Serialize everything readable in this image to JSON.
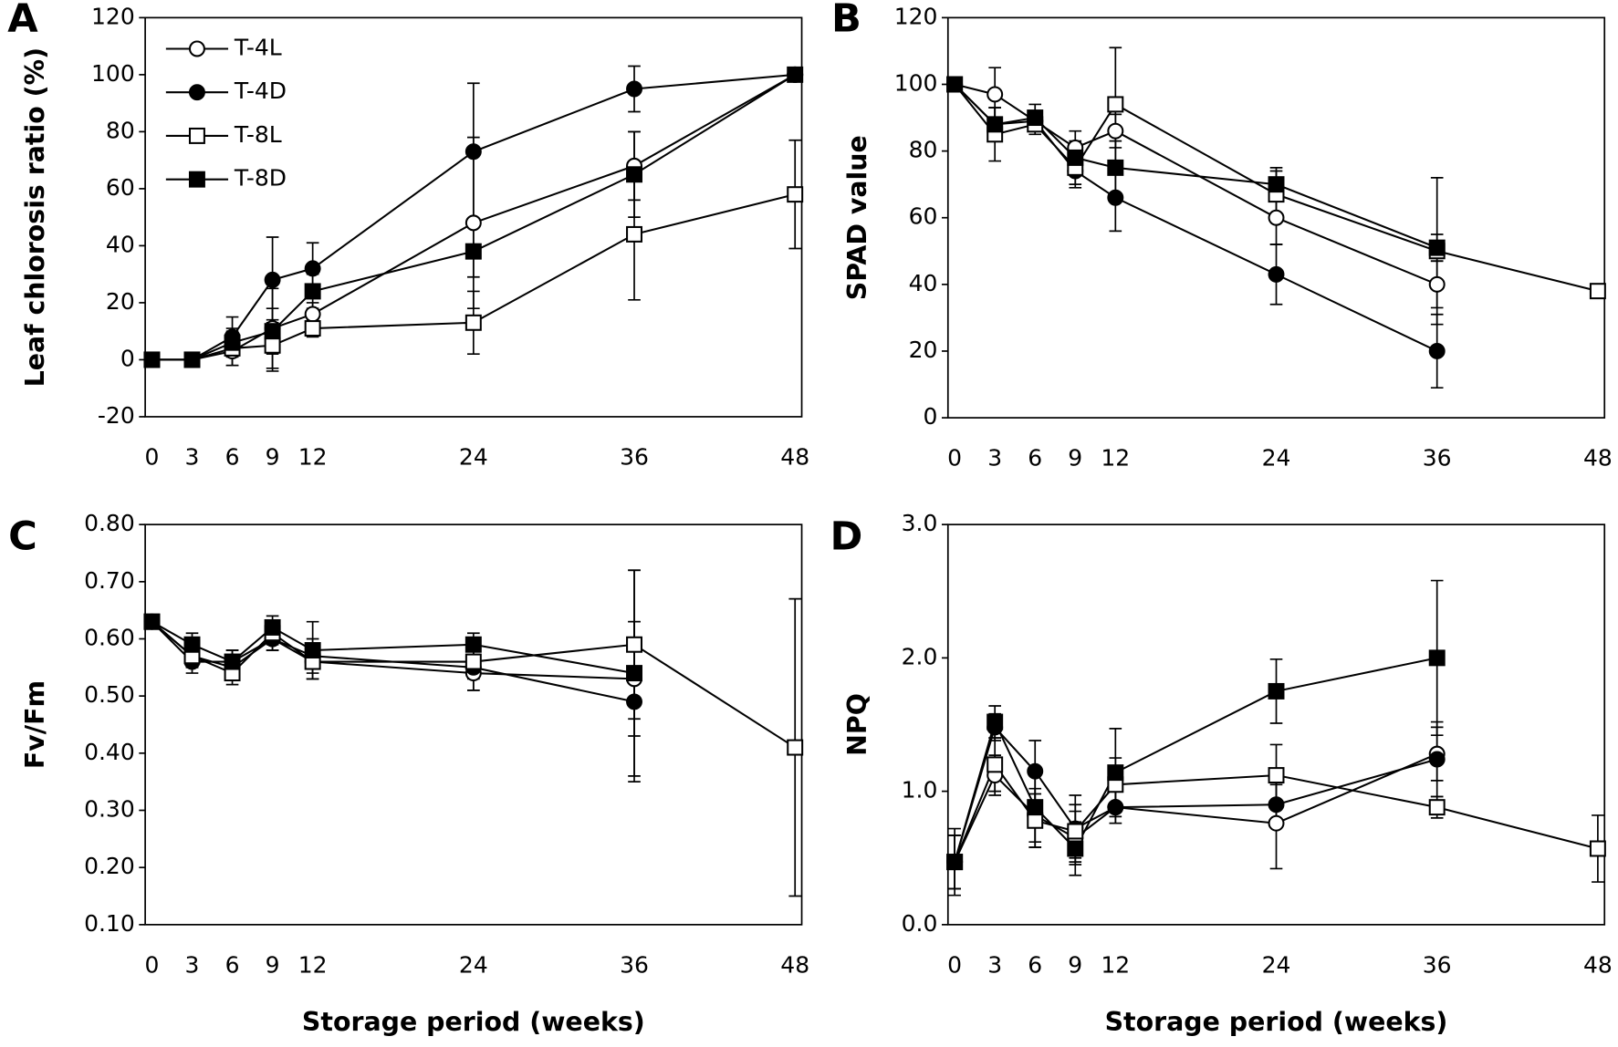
{
  "chart_data": [
    {
      "type": "line",
      "panel_label": "A",
      "y_label": "Leaf chlorosis ratio (%)",
      "x": [
        0,
        3,
        6,
        9,
        12,
        24,
        36,
        48
      ],
      "xlim": [
        -0.5,
        48.5
      ],
      "xticks": [
        0,
        3,
        6,
        9,
        12,
        24,
        36,
        48
      ],
      "ylim": [
        -20,
        120
      ],
      "yticks": [
        -20,
        0,
        20,
        40,
        60,
        80,
        100,
        120
      ],
      "legend": "upper left",
      "series": [
        {
          "name": "T-4L",
          "marker": "circle",
          "color": "#000000",
          "fill": "#ffffff",
          "values": [
            0,
            0,
            3,
            11,
            16,
            48,
            68,
            100
          ],
          "errors": [
            0,
            0,
            5,
            14,
            4,
            30,
            12,
            0
          ]
        },
        {
          "name": "T-4D",
          "marker": "circle",
          "color": "#000000",
          "fill": "#000000",
          "values": [
            0,
            0,
            8,
            28,
            32,
            73,
            95,
            100
          ],
          "errors": [
            0,
            0,
            7,
            15,
            9,
            24,
            8,
            0
          ]
        },
        {
          "name": "T-8L",
          "marker": "square",
          "color": "#000000",
          "fill": "#ffffff",
          "values": [
            0,
            0,
            4,
            5,
            11,
            13,
            44,
            58
          ],
          "errors": [
            0,
            0,
            6,
            9,
            3,
            11,
            23,
            19
          ]
        },
        {
          "name": "T-8D",
          "marker": "square",
          "color": "#000000",
          "fill": "#000000",
          "values": [
            0,
            0,
            6,
            10,
            24,
            38,
            65,
            100
          ],
          "errors": [
            0,
            0,
            5,
            8,
            6,
            9,
            15,
            0
          ]
        }
      ]
    },
    {
      "type": "line",
      "panel_label": "B",
      "y_label": "SPAD value",
      "x": [
        0,
        3,
        6,
        9,
        12,
        24,
        36,
        48
      ],
      "xlim": [
        -0.5,
        48.5
      ],
      "xticks": [
        0,
        3,
        6,
        9,
        12,
        24,
        36,
        48
      ],
      "ylim": [
        0,
        120
      ],
      "yticks": [
        0,
        20,
        40,
        60,
        80,
        100,
        120
      ],
      "series": [
        {
          "name": "T-4L",
          "marker": "circle",
          "color": "#000000",
          "fill": "#ffffff",
          "values": [
            100,
            97,
            89,
            81,
            86,
            60,
            40,
            null
          ],
          "errors": [
            0,
            8,
            3,
            5,
            5,
            8,
            7,
            null
          ]
        },
        {
          "name": "T-4D",
          "marker": "circle",
          "color": "#000000",
          "fill": "#000000",
          "values": [
            100,
            88,
            89,
            74,
            66,
            43,
            20,
            null
          ],
          "errors": [
            0,
            5,
            3,
            5,
            10,
            9,
            11,
            null
          ]
        },
        {
          "name": "T-8L",
          "marker": "square",
          "color": "#000000",
          "fill": "#ffffff",
          "values": [
            100,
            85,
            88,
            75,
            94,
            67,
            50,
            38
          ],
          "errors": [
            0,
            8,
            3,
            5,
            17,
            7,
            22,
            2
          ]
        },
        {
          "name": "T-8D",
          "marker": "square",
          "color": "#000000",
          "fill": "#000000",
          "values": [
            100,
            88,
            90,
            78,
            75,
            70,
            51,
            null
          ],
          "errors": [
            0,
            5,
            4,
            5,
            8,
            5,
            4,
            null
          ]
        }
      ]
    },
    {
      "type": "line",
      "panel_label": "C",
      "y_label": "Fv/Fm",
      "x_label": "Storage period (weeks)",
      "x": [
        0,
        3,
        6,
        9,
        12,
        24,
        36,
        48
      ],
      "xlim": [
        -0.5,
        48.5
      ],
      "xticks": [
        0,
        3,
        6,
        9,
        12,
        24,
        36,
        48
      ],
      "ylim": [
        0.1,
        0.8
      ],
      "yticks": [
        {
          "value": 0.1,
          "label": "0.10"
        },
        {
          "value": 0.2,
          "label": "0.20"
        },
        {
          "value": 0.3,
          "label": "0.30"
        },
        {
          "value": 0.4,
          "label": "0.40"
        },
        {
          "value": 0.5,
          "label": "0.50"
        },
        {
          "value": 0.6,
          "label": "0.60"
        },
        {
          "value": 0.7,
          "label": "0.70"
        },
        {
          "value": 0.8,
          "label": "0.80"
        }
      ],
      "series": [
        {
          "name": "T-4L",
          "marker": "circle",
          "color": "#000000",
          "fill": "#ffffff",
          "values": [
            0.63,
            0.57,
            0.55,
            0.6,
            0.56,
            0.54,
            0.53,
            null
          ],
          "errors": [
            0.01,
            0.02,
            0.02,
            0.02,
            0.03,
            0.03,
            0.1,
            null
          ]
        },
        {
          "name": "T-4D",
          "marker": "circle",
          "color": "#000000",
          "fill": "#000000",
          "values": [
            0.63,
            0.56,
            0.56,
            0.6,
            0.57,
            0.55,
            0.49,
            null
          ],
          "errors": [
            0.01,
            0.02,
            0.02,
            0.02,
            0.03,
            0.04,
            0.14,
            null
          ]
        },
        {
          "name": "T-8L",
          "marker": "square",
          "color": "#000000",
          "fill": "#ffffff",
          "values": [
            0.63,
            0.57,
            0.54,
            0.61,
            0.56,
            0.56,
            0.59,
            0.41
          ],
          "errors": [
            0.01,
            0.02,
            0.02,
            0.02,
            0.03,
            0.03,
            0.13,
            0.26
          ]
        },
        {
          "name": "T-8D",
          "marker": "square",
          "color": "#000000",
          "fill": "#000000",
          "values": [
            0.63,
            0.59,
            0.56,
            0.62,
            0.58,
            0.59,
            0.54,
            null
          ],
          "errors": [
            0.01,
            0.02,
            0.02,
            0.02,
            0.05,
            0.02,
            0.18,
            null
          ]
        }
      ]
    },
    {
      "type": "line",
      "panel_label": "D",
      "y_label": "NPQ",
      "x_label": "Storage period (weeks)",
      "x": [
        0,
        3,
        6,
        9,
        12,
        24,
        36,
        48
      ],
      "xlim": [
        -0.5,
        48.5
      ],
      "xticks": [
        0,
        3,
        6,
        9,
        12,
        24,
        36,
        48
      ],
      "ylim": [
        0,
        3
      ],
      "yticks": [
        {
          "value": 0,
          "label": "0.0"
        },
        {
          "value": 1,
          "label": "1.0"
        },
        {
          "value": 2,
          "label": "2.0"
        },
        {
          "value": 3,
          "label": "3.0"
        }
      ],
      "series": [
        {
          "name": "T-4L",
          "marker": "circle",
          "color": "#000000",
          "fill": "#ffffff",
          "values": [
            0.47,
            1.12,
            0.82,
            0.65,
            0.88,
            0.76,
            1.28,
            null
          ],
          "errors": [
            0.2,
            0.15,
            0.2,
            0.2,
            0.12,
            0.34,
            0.2,
            null
          ]
        },
        {
          "name": "T-4D",
          "marker": "circle",
          "color": "#000000",
          "fill": "#000000",
          "values": [
            0.47,
            1.48,
            1.15,
            0.72,
            0.88,
            0.9,
            1.24,
            null
          ],
          "errors": [
            0.2,
            0.1,
            0.23,
            0.25,
            0.12,
            0.15,
            0.28,
            null
          ]
        },
        {
          "name": "T-8L",
          "marker": "square",
          "color": "#000000",
          "fill": "#ffffff",
          "values": [
            0.47,
            1.2,
            0.78,
            0.7,
            1.05,
            1.12,
            0.88,
            0.57
          ],
          "errors": [
            0.2,
            0.2,
            0.2,
            0.2,
            0.2,
            0.23,
            0.08,
            0.25
          ]
        },
        {
          "name": "T-8D",
          "marker": "square",
          "color": "#000000",
          "fill": "#000000",
          "values": [
            0.47,
            1.52,
            0.88,
            0.57,
            1.14,
            1.75,
            2.0,
            null
          ],
          "errors": [
            0.25,
            0.12,
            0.3,
            0.2,
            0.33,
            0.24,
            0.58,
            null
          ]
        }
      ]
    }
  ]
}
